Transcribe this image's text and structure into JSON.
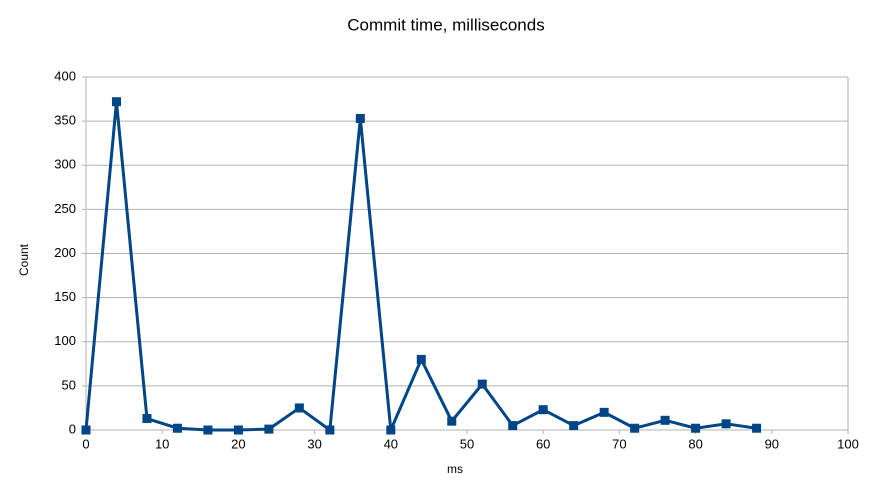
{
  "chart_data": {
    "type": "line",
    "title": "Commit time, milliseconds",
    "x_label": "ms",
    "y_label": "Count",
    "x": [
      0,
      4,
      8,
      12,
      16,
      20,
      24,
      28,
      32,
      36,
      40,
      44,
      48,
      52,
      56,
      60,
      64,
      68,
      72,
      76,
      80,
      84,
      88
    ],
    "series": [
      {
        "name": "Count",
        "color": "#004586",
        "values": [
          0,
          372,
          13,
          2,
          0,
          0,
          1,
          25,
          0,
          353,
          0,
          80,
          10,
          52,
          5,
          23,
          5,
          20,
          2,
          11,
          2,
          7,
          2
        ]
      }
    ],
    "xlim": [
      0,
      100
    ],
    "xticks": [
      0,
      10,
      20,
      30,
      40,
      50,
      60,
      70,
      80,
      90,
      100
    ],
    "ylim": [
      0,
      400
    ],
    "yticks": [
      0,
      50,
      100,
      150,
      200,
      250,
      300,
      350,
      400
    ],
    "grid": true
  }
}
